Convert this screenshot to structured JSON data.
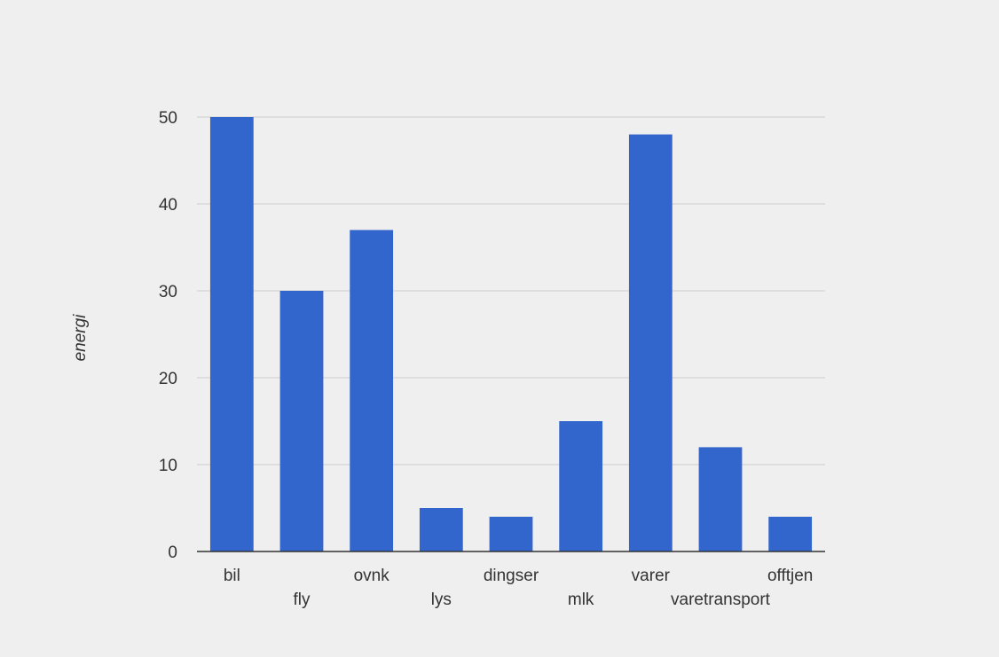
{
  "chart_data": {
    "type": "bar",
    "categories": [
      "bil",
      "fly",
      "ovnk",
      "lys",
      "dingser",
      "mlk",
      "varer",
      "varetransport",
      "offtjen"
    ],
    "values": [
      50,
      30,
      37,
      5,
      4,
      15,
      48,
      12,
      4
    ],
    "xlabel": "",
    "ylabel": "energi",
    "ylim": [
      0,
      50
    ],
    "yticks": [
      0,
      10,
      20,
      30,
      40,
      50
    ],
    "grid": true,
    "legend": "none",
    "colors": {
      "bar": "#3366cc",
      "grid": "#cccccc",
      "axis": "#333333",
      "background": "#efefef"
    }
  }
}
